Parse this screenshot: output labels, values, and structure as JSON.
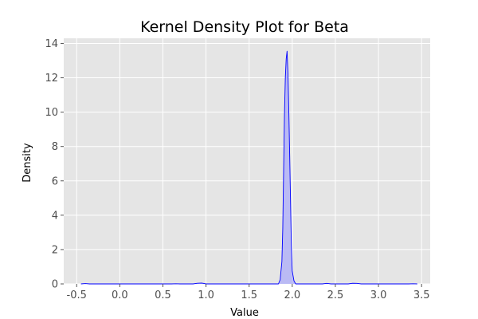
{
  "chart_data": {
    "type": "area",
    "title": "Kernel Density Plot for Beta",
    "xlabel": "Value",
    "ylabel": "Density",
    "xlim": [
      -0.65,
      3.6
    ],
    "ylim": [
      0,
      14.3
    ],
    "xticks": [
      -0.5,
      0.0,
      0.5,
      1.0,
      1.5,
      2.0,
      2.5,
      3.0,
      3.5
    ],
    "xtick_labels": [
      "-0.5",
      "0.0",
      "0.5",
      "1.0",
      "1.5",
      "2.0",
      "2.5",
      "3.0",
      "3.5"
    ],
    "yticks": [
      0,
      2,
      4,
      6,
      8,
      10,
      12,
      14
    ],
    "ytick_labels": [
      "0",
      "2",
      "4",
      "6",
      "8",
      "10",
      "12",
      "14"
    ],
    "grid": true,
    "series": [
      {
        "x": [
          -0.45,
          -0.4,
          -0.35,
          0.6,
          0.65,
          0.7,
          0.85,
          0.9,
          0.95,
          1.0,
          1.84,
          1.86,
          1.88,
          1.89,
          1.9,
          1.91,
          1.92,
          1.93,
          1.94,
          1.95,
          1.96,
          1.97,
          1.98,
          1.99,
          2.0,
          2.02,
          2.04,
          2.35,
          2.4,
          2.45,
          2.65,
          2.7,
          2.75,
          2.8,
          3.35,
          3.4,
          3.45
        ],
        "y": [
          0.0,
          0.02,
          0.0,
          0.0,
          0.01,
          0.0,
          0.0,
          0.04,
          0.05,
          0.0,
          0.0,
          0.25,
          1.3,
          3.2,
          6.6,
          9.9,
          12.0,
          13.1,
          13.55,
          12.3,
          10.2,
          7.6,
          4.9,
          2.2,
          0.75,
          0.18,
          0.0,
          0.0,
          0.03,
          0.0,
          0.0,
          0.04,
          0.03,
          0.0,
          0.0,
          0.01,
          0.0
        ]
      }
    ],
    "colors": {
      "line": "#0000ff",
      "fill": "#b3b3f7",
      "plot_background": "#e5e5e5",
      "grid": "#ffffff"
    }
  }
}
